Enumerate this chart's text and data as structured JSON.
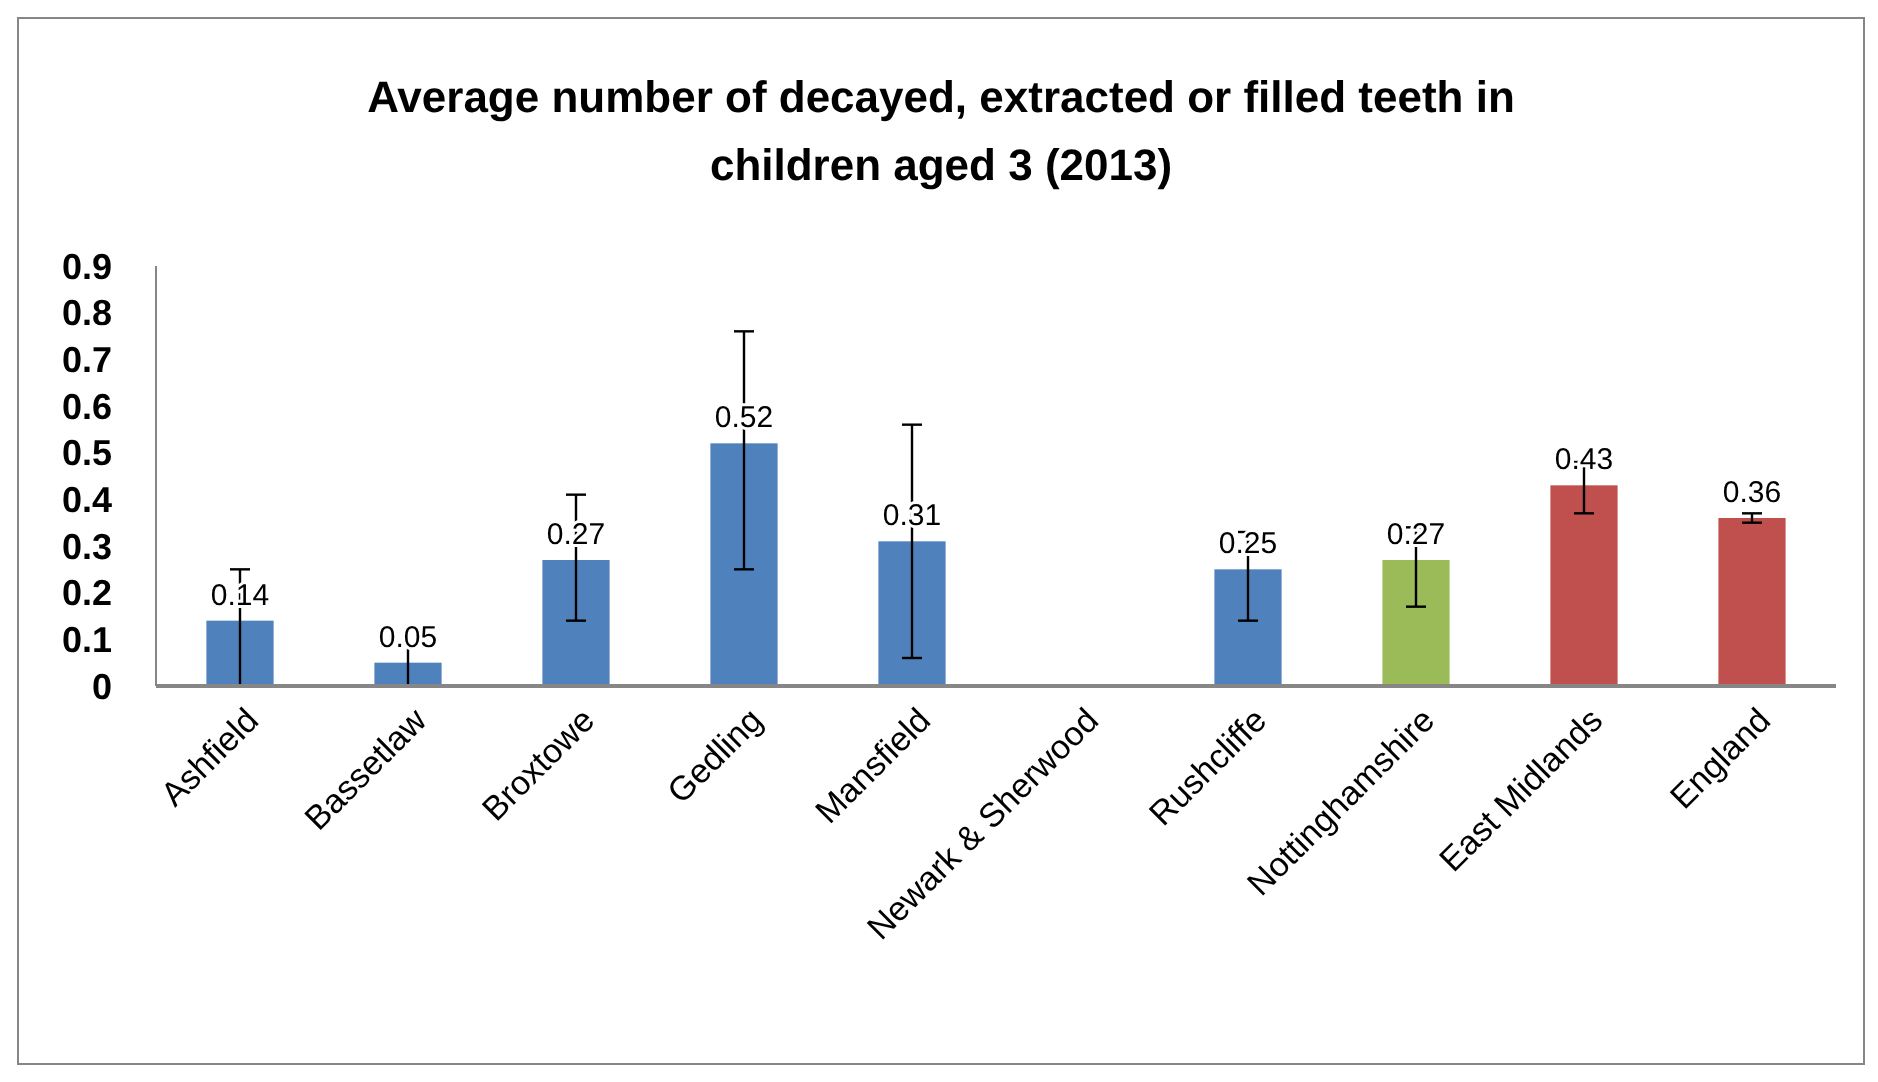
{
  "chart_data": {
    "type": "bar",
    "title": "Average number of decayed, extracted or filled teeth in children aged 3 (2013)",
    "categories": [
      "Ashfield",
      "Bassetlaw",
      "Broxtowe",
      "Gedling",
      "Mansfield",
      "Newark & Sherwood",
      "Rushcliffe",
      "Nottinghamshire",
      "East Midlands",
      "England"
    ],
    "values": [
      0.14,
      0.05,
      0.27,
      0.52,
      0.31,
      null,
      0.25,
      0.27,
      0.43,
      0.36
    ],
    "colors": [
      "#4f81bd",
      "#4f81bd",
      "#4f81bd",
      "#4f81bd",
      "#4f81bd",
      null,
      "#4f81bd",
      "#9bbb59",
      "#c0504d",
      "#c0504d"
    ],
    "errors": [
      [
        0,
        0.25
      ],
      [
        0,
        0.09
      ],
      [
        0.14,
        0.41
      ],
      [
        0.25,
        0.76
      ],
      [
        0.06,
        0.56
      ],
      null,
      [
        0.14,
        0.33
      ],
      [
        0.17,
        0.34
      ],
      [
        0.37,
        0.48
      ],
      [
        0.35,
        0.37
      ]
    ],
    "ylim": [
      0,
      0.9
    ],
    "yticks": [
      0,
      0.1,
      0.2,
      0.3,
      0.4,
      0.5,
      0.6,
      0.7,
      0.8,
      0.9
    ],
    "data_labels": true,
    "grid": false
  }
}
